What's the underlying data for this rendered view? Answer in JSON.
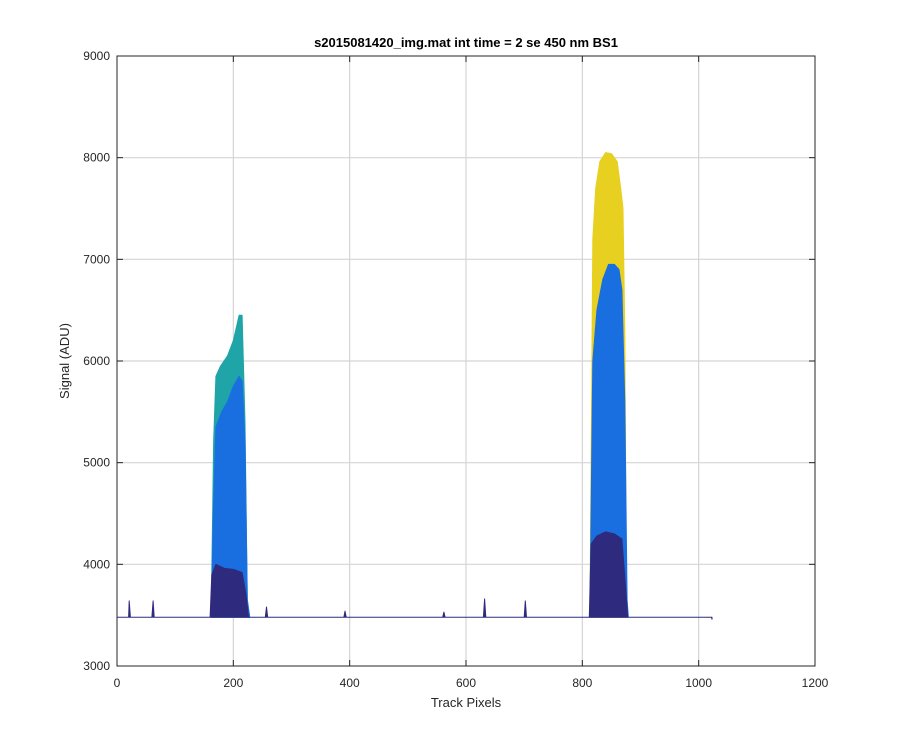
{
  "chart_data": {
    "type": "area",
    "title": "s2015081420_img.mat int time = 2 se  450 nm BS1",
    "xlabel": "Track Pixels",
    "ylabel": "Signal (ADU)",
    "xlim": [
      0,
      1200
    ],
    "ylim": [
      3000,
      9000
    ],
    "xticks": [
      0,
      200,
      400,
      600,
      800,
      1000,
      1200
    ],
    "yticks": [
      3000,
      4000,
      5000,
      6000,
      7000,
      8000,
      9000
    ],
    "grid": true,
    "baseline": 3480,
    "series": [
      {
        "color": "#E8D020",
        "x": [
          813,
          818,
          823,
          830,
          840,
          850,
          860,
          866,
          870,
          873,
          876,
          878
        ],
        "y": [
          3490,
          7200,
          7700,
          7960,
          8050,
          8040,
          7960,
          7700,
          7500,
          6300,
          3600,
          3490
        ]
      },
      {
        "color": "#1FA4A8",
        "x": [
          162,
          166,
          170,
          178,
          190,
          200,
          210,
          215,
          220,
          224,
          228
        ],
        "y": [
          3490,
          5200,
          5850,
          5950,
          6050,
          6200,
          6450,
          6450,
          5400,
          3650,
          3490
        ]
      },
      {
        "color": "#1A6FE0",
        "x": [
          162,
          166,
          170,
          180,
          190,
          200,
          210,
          215,
          220,
          224,
          228
        ],
        "y": [
          3490,
          4600,
          5350,
          5500,
          5600,
          5750,
          5850,
          5800,
          5200,
          3650,
          3490
        ]
      },
      {
        "color": "#1A6FE0",
        "x": [
          813,
          818,
          825,
          835,
          845,
          855,
          863,
          868,
          873,
          877,
          879
        ],
        "y": [
          3490,
          6000,
          6500,
          6800,
          6950,
          6950,
          6900,
          6700,
          5600,
          3650,
          3490
        ]
      },
      {
        "color": "#2E2B7E",
        "x": [
          0,
          20,
          21,
          23,
          60,
          62,
          64,
          160,
          163,
          170,
          185,
          200,
          215,
          222,
          226,
          255,
          257,
          259,
          390,
          392,
          394,
          560,
          562,
          564,
          630,
          632,
          634,
          700,
          702,
          704,
          812,
          815,
          825,
          840,
          855,
          868,
          874,
          878,
          1022,
          1023
        ],
        "y": [
          3480,
          3480,
          3640,
          3480,
          3480,
          3640,
          3480,
          3480,
          3900,
          4000,
          3960,
          3950,
          3920,
          3700,
          3480,
          3480,
          3580,
          3480,
          3480,
          3540,
          3480,
          3480,
          3530,
          3480,
          3480,
          3660,
          3480,
          3480,
          3640,
          3480,
          3480,
          4200,
          4280,
          4320,
          4300,
          4250,
          3800,
          3480,
          3480,
          3460
        ]
      }
    ]
  }
}
